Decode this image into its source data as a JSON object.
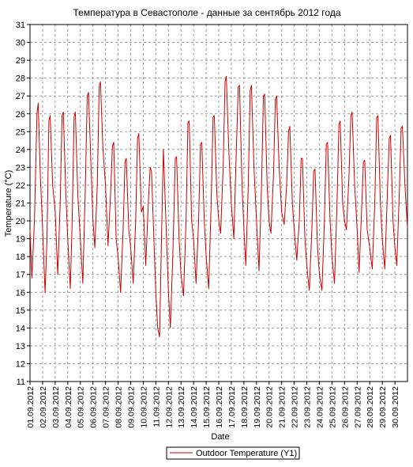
{
  "chart_data": {
    "type": "line",
    "title": "Температура в Севастополе - данные за сентябрь 2012 года",
    "xlabel": "Date",
    "ylabel": "Temperature (°C)",
    "ylim": [
      11,
      31
    ],
    "y_ticks": [
      "11",
      "12",
      "13",
      "14",
      "15",
      "16",
      "17",
      "18",
      "19",
      "20",
      "21",
      "22",
      "23",
      "24",
      "25",
      "26",
      "27",
      "28",
      "29",
      "30",
      "31"
    ],
    "x_range_days": [
      1,
      31
    ],
    "x_ticks": [
      "01.09.2012",
      "02.09.2012",
      "03.09.2012",
      "04.09.2012",
      "05.09.2012",
      "06.09.2012",
      "07.09.2012",
      "08.09.2012",
      "09.09.2012",
      "10.09.2012",
      "11.09.2012",
      "12.09.2012",
      "13.09.2012",
      "14.09.2012",
      "15.09.2012",
      "16.09.2012",
      "17.09.2012",
      "18.09.2012",
      "19.09.2012",
      "20.09.2012",
      "21.09.2012",
      "22.09.2012",
      "23.09.2012",
      "24.09.2012",
      "25.09.2012",
      "26.09.2012",
      "27.09.2012",
      "28.09.2012",
      "29.09.2012",
      "30.09.2012"
    ],
    "grid": true,
    "legend_position": "bottom",
    "series": [
      {
        "name": "Outdoor Temperature (Y1)",
        "color": "#cc0000",
        "points": [
          [
            1.0,
            19.5
          ],
          [
            1.15,
            16.8
          ],
          [
            1.35,
            20.0
          ],
          [
            1.55,
            26.0
          ],
          [
            1.65,
            26.6
          ],
          [
            1.8,
            23.0
          ],
          [
            2.0,
            19.6
          ],
          [
            2.2,
            16.0
          ],
          [
            2.35,
            19.0
          ],
          [
            2.5,
            25.6
          ],
          [
            2.6,
            25.9
          ],
          [
            2.8,
            22.0
          ],
          [
            3.0,
            20.5
          ],
          [
            3.2,
            17.0
          ],
          [
            3.4,
            21.0
          ],
          [
            3.55,
            25.9
          ],
          [
            3.65,
            26.1
          ],
          [
            3.85,
            21.5
          ],
          [
            4.0,
            19.0
          ],
          [
            4.2,
            16.2
          ],
          [
            4.35,
            20.0
          ],
          [
            4.5,
            25.8
          ],
          [
            4.6,
            26.1
          ],
          [
            4.8,
            21.5
          ],
          [
            5.0,
            19.0
          ],
          [
            5.2,
            16.5
          ],
          [
            5.4,
            22.0
          ],
          [
            5.55,
            27.0
          ],
          [
            5.65,
            27.2
          ],
          [
            5.85,
            23.0
          ],
          [
            6.0,
            20.0
          ],
          [
            6.15,
            18.5
          ],
          [
            6.35,
            22.0
          ],
          [
            6.5,
            27.5
          ],
          [
            6.6,
            27.8
          ],
          [
            6.8,
            24.0
          ],
          [
            7.0,
            22.0
          ],
          [
            7.2,
            18.6
          ],
          [
            7.4,
            21.5
          ],
          [
            7.55,
            24.2
          ],
          [
            7.65,
            24.4
          ],
          [
            7.85,
            19.0
          ],
          [
            8.0,
            18.0
          ],
          [
            8.2,
            16.0
          ],
          [
            8.4,
            19.5
          ],
          [
            8.55,
            23.3
          ],
          [
            8.65,
            23.5
          ],
          [
            8.85,
            19.5
          ],
          [
            9.0,
            18.5
          ],
          [
            9.2,
            16.5
          ],
          [
            9.4,
            20.0
          ],
          [
            9.55,
            24.6
          ],
          [
            9.65,
            24.9
          ],
          [
            9.85,
            20.5
          ],
          [
            10.0,
            20.8
          ],
          [
            10.2,
            17.5
          ],
          [
            10.4,
            21.0
          ],
          [
            10.55,
            23.0
          ],
          [
            10.65,
            22.8
          ],
          [
            10.85,
            19.0
          ],
          [
            11.0,
            16.0
          ],
          [
            11.15,
            14.0
          ],
          [
            11.3,
            13.5
          ],
          [
            11.45,
            19.0
          ],
          [
            11.6,
            24.0
          ],
          [
            11.8,
            20.0
          ],
          [
            12.0,
            16.0
          ],
          [
            12.15,
            14.0
          ],
          [
            12.35,
            18.0
          ],
          [
            12.55,
            23.5
          ],
          [
            12.65,
            23.6
          ],
          [
            12.85,
            19.0
          ],
          [
            13.0,
            17.0
          ],
          [
            13.2,
            15.8
          ],
          [
            13.4,
            20.0
          ],
          [
            13.55,
            25.5
          ],
          [
            13.65,
            25.6
          ],
          [
            13.85,
            20.0
          ],
          [
            14.0,
            19.0
          ],
          [
            14.2,
            16.5
          ],
          [
            14.4,
            20.0
          ],
          [
            14.55,
            24.3
          ],
          [
            14.65,
            24.4
          ],
          [
            14.85,
            20.0
          ],
          [
            15.0,
            18.0
          ],
          [
            15.2,
            16.2
          ],
          [
            15.4,
            21.0
          ],
          [
            15.55,
            25.8
          ],
          [
            15.65,
            25.9
          ],
          [
            15.85,
            21.5
          ],
          [
            16.0,
            20.0
          ],
          [
            16.15,
            19.3
          ],
          [
            16.35,
            23.0
          ],
          [
            16.5,
            27.8
          ],
          [
            16.6,
            28.1
          ],
          [
            16.8,
            24.0
          ],
          [
            17.0,
            21.0
          ],
          [
            17.2,
            19.0
          ],
          [
            17.4,
            24.0
          ],
          [
            17.55,
            27.5
          ],
          [
            17.65,
            27.6
          ],
          [
            17.85,
            22.0
          ],
          [
            18.0,
            19.5
          ],
          [
            18.15,
            17.5
          ],
          [
            18.35,
            22.0
          ],
          [
            18.5,
            27.3
          ],
          [
            18.6,
            27.6
          ],
          [
            18.8,
            23.0
          ],
          [
            19.0,
            20.0
          ],
          [
            19.2,
            17.2
          ],
          [
            19.4,
            22.0
          ],
          [
            19.55,
            27.0
          ],
          [
            19.65,
            27.1
          ],
          [
            19.85,
            22.0
          ],
          [
            20.0,
            20.0
          ],
          [
            20.15,
            19.3
          ],
          [
            20.35,
            22.5
          ],
          [
            20.5,
            26.8
          ],
          [
            20.6,
            27.0
          ],
          [
            20.8,
            23.0
          ],
          [
            21.0,
            20.5
          ],
          [
            21.2,
            19.8
          ],
          [
            21.4,
            22.0
          ],
          [
            21.55,
            25.0
          ],
          [
            21.65,
            25.3
          ],
          [
            21.85,
            21.0
          ],
          [
            22.0,
            19.5
          ],
          [
            22.2,
            17.8
          ],
          [
            22.4,
            20.0
          ],
          [
            22.55,
            23.5
          ],
          [
            22.65,
            23.5
          ],
          [
            22.85,
            19.0
          ],
          [
            23.0,
            17.5
          ],
          [
            23.2,
            16.1
          ],
          [
            23.4,
            19.5
          ],
          [
            23.55,
            22.8
          ],
          [
            23.65,
            22.9
          ],
          [
            23.85,
            18.5
          ],
          [
            24.0,
            17.0
          ],
          [
            24.2,
            16.1
          ],
          [
            24.4,
            20.0
          ],
          [
            24.55,
            24.3
          ],
          [
            24.65,
            24.4
          ],
          [
            24.85,
            20.0
          ],
          [
            25.0,
            18.0
          ],
          [
            25.2,
            16.5
          ],
          [
            25.4,
            21.0
          ],
          [
            25.55,
            25.4
          ],
          [
            25.65,
            25.6
          ],
          [
            25.85,
            21.0
          ],
          [
            26.0,
            20.0
          ],
          [
            26.15,
            19.5
          ],
          [
            26.35,
            22.5
          ],
          [
            26.5,
            25.9
          ],
          [
            26.6,
            26.1
          ],
          [
            26.8,
            22.0
          ],
          [
            27.0,
            19.5
          ],
          [
            27.15,
            17.1
          ],
          [
            27.35,
            20.5
          ],
          [
            27.5,
            23.3
          ],
          [
            27.6,
            23.4
          ],
          [
            27.8,
            19.5
          ],
          [
            28.0,
            18.5
          ],
          [
            28.2,
            17.3
          ],
          [
            28.4,
            21.0
          ],
          [
            28.55,
            25.8
          ],
          [
            28.65,
            25.9
          ],
          [
            28.85,
            21.0
          ],
          [
            29.0,
            19.0
          ],
          [
            29.2,
            17.3
          ],
          [
            29.4,
            21.5
          ],
          [
            29.55,
            24.6
          ],
          [
            29.65,
            24.8
          ],
          [
            29.85,
            20.0
          ],
          [
            30.0,
            18.5
          ],
          [
            30.15,
            17.5
          ],
          [
            30.35,
            21.5
          ],
          [
            30.5,
            25.2
          ],
          [
            30.6,
            25.3
          ],
          [
            30.8,
            22.0
          ],
          [
            31.0,
            19.6
          ]
        ]
      }
    ]
  }
}
